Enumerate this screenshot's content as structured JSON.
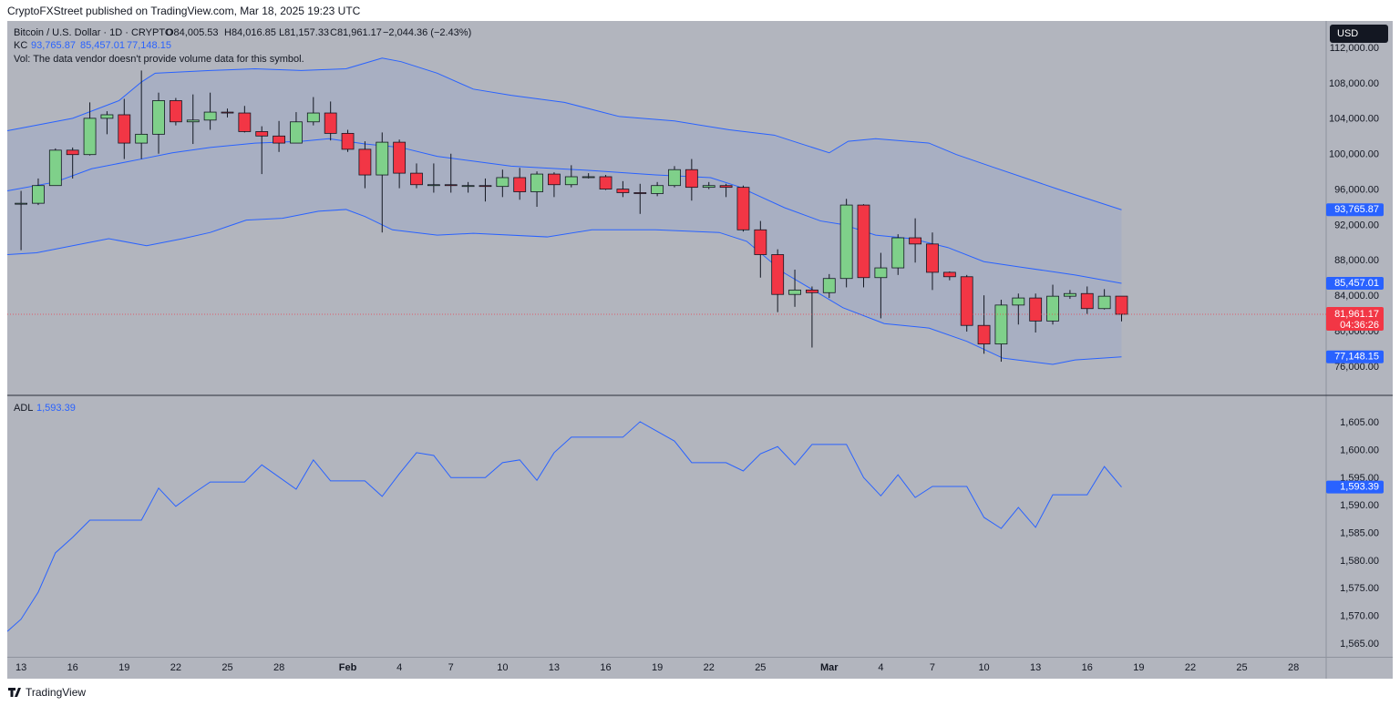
{
  "header": {
    "publisher": "CryptoFXStreet published on TradingView.com, Mar 18, 2025 19:23 UTC",
    "currency": "USD",
    "footer": "TradingView"
  },
  "chart_data": [
    {
      "type": "candlestick",
      "title": "Bitcoin / U.S. Dollar · 1D · CRYPTO",
      "ohlc_labels": [
        "O84,005.53",
        "H84,016.85",
        "L81,157.33",
        "C81,961.17"
      ],
      "change": "−2,044.36 (−2.43%)",
      "indicator": "KC",
      "notice": "Vol: The data vendor doesn't provide volume data for this symbol.",
      "close_label": "81,961.17",
      "countdown": "04:36:26",
      "up_color": "#7fd08a",
      "down_color": "#f23645",
      "channel_fill": true,
      "xlim": [
        -0.8,
        75.9
      ],
      "ylim": [
        72900,
        115100
      ],
      "yticks": [
        {
          "value": 76000,
          "label": "76,000.00"
        },
        {
          "value": 80000,
          "label": "80,000.00"
        },
        {
          "value": 84000,
          "label": "84,000.00"
        },
        {
          "value": 88000,
          "label": "88,000.00"
        },
        {
          "value": 92000,
          "label": "92,000.00"
        },
        {
          "value": 96000,
          "label": "96,000.00"
        },
        {
          "value": 100000,
          "label": "100,000.00"
        },
        {
          "value": 104000,
          "label": "104,000.00"
        },
        {
          "value": 108000,
          "label": "108,000.00"
        },
        {
          "value": 112000,
          "label": "112,000.00"
        }
      ],
      "open": [
        94500,
        94500,
        96500,
        100500,
        100000,
        104100,
        104500,
        101300,
        102300,
        106100,
        103700,
        103900,
        104800,
        104700,
        102600,
        102100,
        101300,
        103700,
        104700,
        102400,
        100600,
        97700,
        101400,
        97900,
        96600,
        96600,
        96500,
        96500,
        96400,
        97400,
        95800,
        97800,
        96600,
        97500,
        97500,
        96100,
        95700,
        95600,
        96500,
        98300,
        96300,
        96500,
        96300,
        91500,
        88700,
        84200,
        84700,
        84400,
        86000,
        94300,
        86100,
        87200,
        90600,
        89900,
        86700,
        86200,
        80700,
        78600,
        83000,
        83800,
        81200,
        84000,
        84300,
        82600,
        84005.53
      ],
      "high": [
        95900,
        97300,
        100700,
        100800,
        105900,
        104900,
        106300,
        109500,
        107000,
        106400,
        106800,
        107000,
        105200,
        105500,
        103200,
        103800,
        104800,
        106500,
        106000,
        102800,
        101500,
        102500,
        101700,
        99000,
        99000,
        100100,
        96900,
        97300,
        98300,
        98500,
        98100,
        98000,
        98800,
        97900,
        97700,
        97000,
        96700,
        96900,
        98700,
        99500,
        96900,
        96700,
        96500,
        92500,
        89300,
        87000,
        85100,
        86500,
        95000,
        94400,
        88900,
        91000,
        92800,
        91200,
        86800,
        86400,
        84100,
        83600,
        84300,
        84300,
        85300,
        84700,
        85100,
        84800,
        84016.85
      ],
      "low": [
        89200,
        94300,
        96500,
        97300,
        99900,
        102300,
        99500,
        99500,
        100100,
        103300,
        101200,
        102800,
        104200,
        102500,
        97800,
        100300,
        101300,
        103300,
        101600,
        100300,
        96200,
        91200,
        96200,
        96200,
        95700,
        95700,
        95700,
        94700,
        95200,
        94900,
        94100,
        95200,
        96300,
        97300,
        96000,
        95200,
        93300,
        95300,
        96300,
        94800,
        96100,
        95200,
        91300,
        86100,
        82200,
        82800,
        78200,
        83800,
        85000,
        85000,
        81500,
        86400,
        87800,
        84700,
        85800,
        80000,
        77500,
        76600,
        80800,
        79900,
        80800,
        83700,
        82000,
        82500,
        81157.33
      ],
      "close": [
        94500,
        96500,
        100500,
        100000,
        104100,
        104500,
        101300,
        102300,
        106100,
        103700,
        103900,
        104800,
        104700,
        102600,
        102100,
        101300,
        103700,
        104700,
        102400,
        100600,
        97700,
        101400,
        97900,
        96600,
        96600,
        96500,
        96500,
        96400,
        97400,
        95800,
        97800,
        96600,
        97500,
        97500,
        96100,
        95700,
        95600,
        96500,
        98300,
        96300,
        96500,
        96300,
        91500,
        88700,
        84200,
        84700,
        84400,
        86000,
        94300,
        86100,
        87200,
        90600,
        89900,
        86700,
        86200,
        80700,
        78600,
        83000,
        83800,
        81200,
        84000,
        84300,
        82600,
        84000,
        81961.17
      ],
      "series": [
        {
          "color": "#2962ff",
          "last_label": "93,765.87",
          "x": [
            -0.8,
            3.0,
            5.7,
            7.0,
            7.8,
            11.0,
            13.6,
            16.3,
            18.9,
            21.0,
            22.1,
            24.2,
            26.3,
            28.5,
            31.6,
            34.8,
            38.0,
            41.2,
            43.8,
            45.4,
            47.0,
            48.1,
            49.7,
            52.8,
            54.4,
            56.5,
            60.3,
            64
          ],
          "values": [
            102700,
            104100,
            106100,
            108200,
            109200,
            109500,
            109700,
            109500,
            109700,
            110900,
            110500,
            109200,
            107400,
            106700,
            105900,
            104300,
            103800,
            102800,
            102200,
            101200,
            100200,
            101500,
            101800,
            101300,
            100000,
            98600,
            96100,
            93765.87
          ]
        },
        {
          "color": "#2962ff",
          "last_label": "85,457.01",
          "x": [
            -0.8,
            2.0,
            4.1,
            7.0,
            8.8,
            11.0,
            13.6,
            16.3,
            17.9,
            20.0,
            22.1,
            24.2,
            28.5,
            33.2,
            36.9,
            40.1,
            41.7,
            44.4,
            46.5,
            47.8,
            49.7,
            51.8,
            53.9,
            56.0,
            58.1,
            61.3,
            64
          ],
          "values": [
            95900,
            96900,
            98400,
            99500,
            100200,
            100800,
            101300,
            101500,
            101800,
            101200,
            100800,
            99800,
            98700,
            98200,
            97700,
            97400,
            96400,
            94000,
            92500,
            92100,
            90900,
            90500,
            89500,
            87900,
            87300,
            86400,
            85457.01
          ]
        },
        {
          "color": "#2962ff",
          "last_label": "77,148.15",
          "x": [
            -0.8,
            0.9,
            3.0,
            5.1,
            7.3,
            9.4,
            11.0,
            13.1,
            15.2,
            17.3,
            18.9,
            20.0,
            21.6,
            24.2,
            26.3,
            30.6,
            33.2,
            36.9,
            40.6,
            42.2,
            44.4,
            46.5,
            47.8,
            50.2,
            52.8,
            55.0,
            57.1,
            60.0,
            61.3,
            64
          ],
          "values": [
            88700,
            88900,
            89700,
            90500,
            89700,
            90500,
            91200,
            92600,
            92800,
            93600,
            93800,
            93000,
            91500,
            90900,
            91100,
            90700,
            91500,
            91500,
            91200,
            90200,
            86600,
            84200,
            82700,
            80900,
            80400,
            78900,
            77000,
            76300,
            76800,
            77148.15
          ]
        }
      ]
    },
    {
      "type": "line",
      "indicator": "ADL",
      "xlim": [
        -0.8,
        75.9
      ],
      "ylim": [
        1562.7,
        1609.8
      ],
      "yticks": [
        {
          "value": 1565,
          "label": "1,565.00"
        },
        {
          "value": 1570,
          "label": "1,570.00"
        },
        {
          "value": 1575,
          "label": "1,575.00"
        },
        {
          "value": 1580,
          "label": "1,580.00"
        },
        {
          "value": 1585,
          "label": "1,585.00"
        },
        {
          "value": 1590,
          "label": "1,590.00"
        },
        {
          "value": 1595,
          "label": "1,595.00"
        },
        {
          "value": 1600,
          "label": "1,600.00"
        },
        {
          "value": 1605,
          "label": "1,605.00"
        }
      ],
      "xticks": [
        {
          "value": 0,
          "label": "13"
        },
        {
          "value": 3,
          "label": "16"
        },
        {
          "value": 6,
          "label": "19"
        },
        {
          "value": 9,
          "label": "22"
        },
        {
          "value": 12,
          "label": "25"
        },
        {
          "value": 15,
          "label": "28"
        },
        {
          "value": 19,
          "label": "Feb"
        },
        {
          "value": 22,
          "label": "4"
        },
        {
          "value": 25,
          "label": "7"
        },
        {
          "value": 28,
          "label": "10"
        },
        {
          "value": 31,
          "label": "13"
        },
        {
          "value": 34,
          "label": "16"
        },
        {
          "value": 37,
          "label": "19"
        },
        {
          "value": 40,
          "label": "22"
        },
        {
          "value": 43,
          "label": "25"
        },
        {
          "value": 47,
          "label": "Mar"
        },
        {
          "value": 50,
          "label": "4"
        },
        {
          "value": 53,
          "label": "7"
        },
        {
          "value": 56,
          "label": "10"
        },
        {
          "value": 59,
          "label": "13"
        },
        {
          "value": 62,
          "label": "16"
        },
        {
          "value": 65,
          "label": "19"
        },
        {
          "value": 68,
          "label": "22"
        },
        {
          "value": 71,
          "label": "25"
        },
        {
          "value": 74,
          "label": "28"
        }
      ],
      "series": [
        {
          "color": "#2962ff",
          "last_label": "1,593.39",
          "x": [
            -0.8,
            0,
            1,
            2,
            3,
            4,
            7,
            8,
            9,
            10,
            11,
            13,
            14,
            16,
            17,
            18,
            20,
            21,
            22,
            23,
            24,
            25,
            27,
            28,
            29,
            30,
            31,
            32,
            35,
            36,
            38,
            39,
            41,
            42,
            43,
            44,
            45,
            46,
            48,
            49,
            50,
            51,
            52,
            53,
            55,
            56,
            57,
            58,
            59,
            60,
            62,
            63,
            64
          ],
          "values": [
            1567.3,
            1569.5,
            1574.4,
            1581.5,
            1584.3,
            1587.4,
            1587.4,
            1593.2,
            1589.9,
            1592.2,
            1594.3,
            1594.3,
            1597.4,
            1593.0,
            1598.3,
            1594.5,
            1594.5,
            1591.7,
            1595.8,
            1599.6,
            1599.1,
            1595.1,
            1595.1,
            1597.8,
            1598.3,
            1594.6,
            1599.6,
            1602.4,
            1602.4,
            1605.2,
            1601.7,
            1597.8,
            1597.8,
            1596.3,
            1599.4,
            1600.7,
            1597.4,
            1601.1,
            1601.1,
            1595.1,
            1591.8,
            1595.6,
            1591.5,
            1593.5,
            1593.5,
            1587.9,
            1585.9,
            1589.7,
            1586.1,
            1592.0,
            1592.0,
            1597.1,
            1593.39
          ]
        }
      ]
    }
  ]
}
